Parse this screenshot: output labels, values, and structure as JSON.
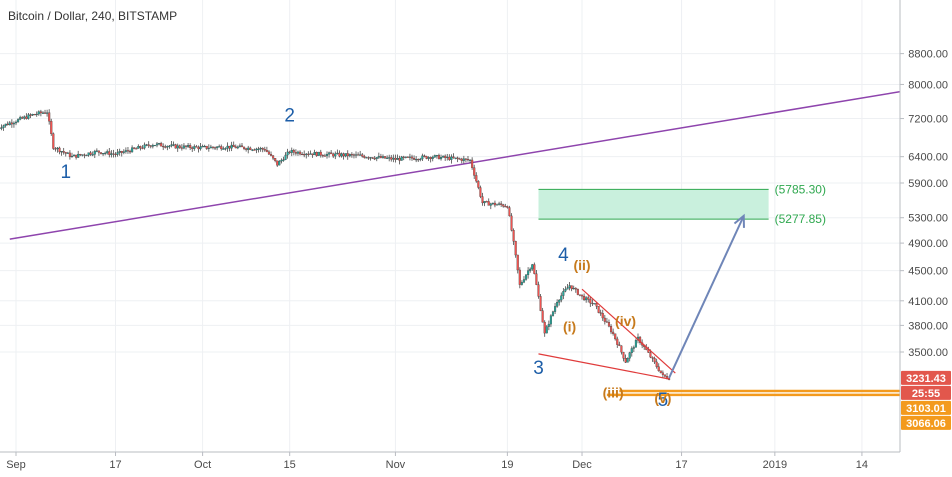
{
  "chart_data": {
    "type": "candlestick",
    "title": "Bitcoin / Dollar, 240, BITSTAMP",
    "ylim": [
      2900,
      9000
    ],
    "y_ticks": [
      {
        "value": 8800,
        "label": "8800.00"
      },
      {
        "value": 8000,
        "label": "8000.00"
      },
      {
        "value": 7200,
        "label": "7200.00"
      },
      {
        "value": 6400,
        "label": "6400.00"
      },
      {
        "value": 5900,
        "label": "5900.00"
      },
      {
        "value": 5300,
        "label": "5300.00"
      },
      {
        "value": 4900,
        "label": "4900.00"
      },
      {
        "value": 4500,
        "label": "4500.00"
      },
      {
        "value": 4100,
        "label": "4100.00"
      },
      {
        "value": 3800,
        "label": "3800.00"
      },
      {
        "value": 3500,
        "label": "3500.00"
      }
    ],
    "x_ticks": [
      {
        "label": "Sep",
        "day": 1
      },
      {
        "label": "17",
        "day": 17
      },
      {
        "label": "Oct",
        "day": 31
      },
      {
        "label": "15",
        "day": 45
      },
      {
        "label": "Nov",
        "day": 62
      },
      {
        "label": "19",
        "day": 80
      },
      {
        "label": "Dec",
        "day": 92
      },
      {
        "label": "17",
        "day": 108
      },
      {
        "label": "2019",
        "day": 123
      },
      {
        "label": "14",
        "day": 137
      }
    ],
    "xlim_days": [
      0,
      145
    ],
    "price_path": [
      {
        "day": -2,
        "price": 7000
      },
      {
        "day": 1,
        "price": 7150
      },
      {
        "day": 4,
        "price": 7300
      },
      {
        "day": 6,
        "price": 7350
      },
      {
        "day": 7,
        "price": 6600
      },
      {
        "day": 10,
        "price": 6400
      },
      {
        "day": 14,
        "price": 6500
      },
      {
        "day": 17,
        "price": 6450
      },
      {
        "day": 20,
        "price": 6550
      },
      {
        "day": 23,
        "price": 6650
      },
      {
        "day": 27,
        "price": 6600
      },
      {
        "day": 31,
        "price": 6580
      },
      {
        "day": 35,
        "price": 6600
      },
      {
        "day": 41,
        "price": 6550
      },
      {
        "day": 43,
        "price": 6250
      },
      {
        "day": 45,
        "price": 6500
      },
      {
        "day": 50,
        "price": 6450
      },
      {
        "day": 56,
        "price": 6420
      },
      {
        "day": 62,
        "price": 6350
      },
      {
        "day": 68,
        "price": 6400
      },
      {
        "day": 74,
        "price": 6330
      },
      {
        "day": 76,
        "price": 5550
      },
      {
        "day": 80,
        "price": 5500
      },
      {
        "day": 82,
        "price": 4300
      },
      {
        "day": 84,
        "price": 4600
      },
      {
        "day": 86,
        "price": 3700
      },
      {
        "day": 88,
        "price": 4100
      },
      {
        "day": 90,
        "price": 4300
      },
      {
        "day": 92,
        "price": 4150
      },
      {
        "day": 94,
        "price": 4050
      },
      {
        "day": 97,
        "price": 3700
      },
      {
        "day": 99,
        "price": 3400
      },
      {
        "day": 101,
        "price": 3650
      },
      {
        "day": 103,
        "price": 3450
      },
      {
        "day": 105,
        "price": 3250
      },
      {
        "day": 106,
        "price": 3231.43
      }
    ],
    "trendline": {
      "from": {
        "day": 0,
        "price": 4960
      },
      "to": {
        "day": 145,
        "price": 7870
      },
      "color": "#8e44ad"
    },
    "target_zone": {
      "from_day": 85,
      "to_day": 122,
      "top": 5785.3,
      "bottom": 5277.85,
      "top_label": "(5785.30)",
      "bottom_label": "(5277.85)",
      "fill": "#c9f0dd",
      "line": "#2fa84f"
    },
    "projection_arrow": {
      "from": {
        "day": 106,
        "price": 3231.43
      },
      "to": {
        "day": 118,
        "price": 5330
      },
      "color": "#6f86b8"
    },
    "wedge_lines": [
      {
        "from": {
          "day": 85,
          "price": 3480
        },
        "to": {
          "day": 106,
          "price": 3220
        }
      },
      {
        "from": {
          "day": 92,
          "price": 4250
        },
        "to": {
          "day": 107,
          "price": 3280
        }
      }
    ],
    "wedge_color": "#e03b3b",
    "support_lines": [
      {
        "price": 3103.01,
        "from_day": 98,
        "to_day": 145
      },
      {
        "price": 3066.06,
        "from_day": 96,
        "to_day": 145
      }
    ],
    "support_color": "#f39a1d",
    "wave_labels_primary": [
      {
        "text": "1",
        "day": 9,
        "price": 5990
      },
      {
        "text": "2",
        "day": 45,
        "price": 7130
      },
      {
        "text": "3",
        "day": 85,
        "price": 3270
      },
      {
        "text": "4",
        "day": 89,
        "price": 4640
      },
      {
        "text": "5",
        "day": 105,
        "price": 2960
      }
    ],
    "wave_labels_secondary": [
      {
        "text": "(i)",
        "day": 90,
        "price": 3730
      },
      {
        "text": "(ii)",
        "day": 92,
        "price": 4510
      },
      {
        "text": "(iii)",
        "day": 97,
        "price": 3040
      },
      {
        "text": "(iv)",
        "day": 99,
        "price": 3790
      },
      {
        "text": "(v)",
        "day": 105,
        "price": 2990
      }
    ],
    "price_badges": [
      {
        "label": "3231.43",
        "price": 3231.43,
        "color": "#e2574c"
      },
      {
        "label": "25:55",
        "price": 3150,
        "color": "#e2574c"
      },
      {
        "label": "3103.01",
        "price": 3103.01,
        "color": "#f39a1d"
      },
      {
        "label": "3066.06",
        "price": 3066.06,
        "color": "#f39a1d"
      }
    ]
  }
}
